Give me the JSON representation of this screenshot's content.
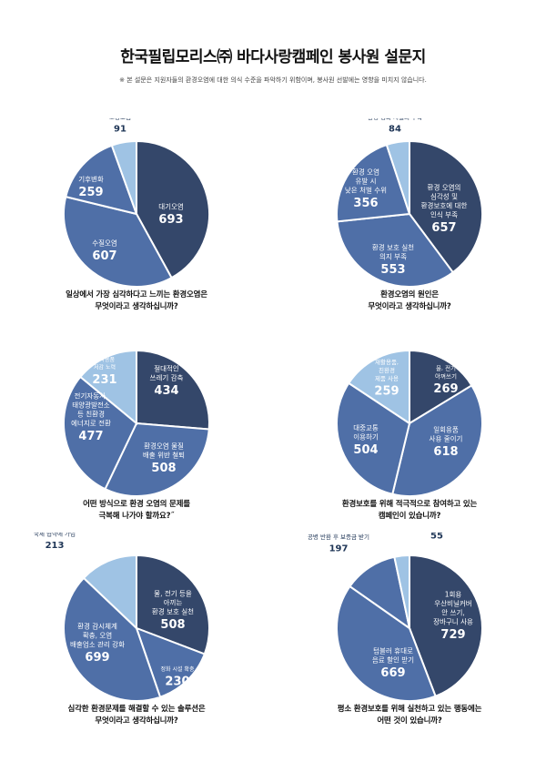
{
  "header": {
    "title": "한국필립모리스㈜ 바다사랑캠페인 봉사원 설문지",
    "note": "※ 본 설문은 지원자들의 환경오염에 대한 의식 수준을 파악하기 위함이며, 봉사원 선발에는 영향을 미치지 않습니다."
  },
  "colors": {
    "dark": "#34476a",
    "mid": "#4f6fa7",
    "light": "#9fc3e4",
    "label_dark": "#1e3556"
  },
  "chart_data": [
    {
      "type": "pie",
      "question": [
        "일상에서 가장 심각하다고 느끼는 환경오염은",
        "무엇이라고 생각하십니까?"
      ],
      "slices": [
        {
          "label": [
            "대기오염"
          ],
          "value": 693
        },
        {
          "label": [
            "수질오염"
          ],
          "value": 607
        },
        {
          "label": [
            "기후변화"
          ],
          "value": 259
        },
        {
          "label": [
            "토양오염"
          ],
          "value": 91
        }
      ]
    },
    {
      "type": "pie",
      "question": [
        "환경오염의 원인은",
        "무엇이라고 생각하십니까?"
      ],
      "slices": [
        {
          "label": [
            "환경 오염의",
            "심각성 및",
            "환경보호에 대한",
            "인식 부족"
          ],
          "value": 657
        },
        {
          "label": [
            "환경 보호 실천",
            "의지 부족"
          ],
          "value": 553
        },
        {
          "label": [
            "환경 오염",
            "유발 시",
            "낮은 처벌 수위"
          ],
          "value": 356
        },
        {
          "label": [
            "환경 정화 시설의 부족"
          ],
          "value": 84
        }
      ]
    },
    {
      "type": "pie",
      "question": [
        "어떤 방식으로 환경 오염의 문제를",
        "극복해 나가야 할까요?˝"
      ],
      "slices": [
        {
          "label": [
            "절대적인",
            "쓰레기 감축"
          ],
          "value": 434
        },
        {
          "label": [
            "환경오염 물질",
            "배출 위반 철퇴"
          ],
          "value": 508
        },
        {
          "label": [
            "전기자동차,",
            "태양광발전소",
            "등 친환경",
            "에너지로 전환"
          ],
          "value": 477
        },
        {
          "label": [
            "농약 및",
            "화학용품",
            "저감 노력"
          ],
          "value": 231
        }
      ]
    },
    {
      "type": "pie",
      "question": [
        "환경보호를 위해 적극적으로 참여하고 있는",
        "캠페인이 있습니까?"
      ],
      "slices": [
        {
          "label": [
            "물, 전기",
            "아껴쓰기"
          ],
          "value": 269
        },
        {
          "label": [
            "일회용품",
            "사용 줄이기"
          ],
          "value": 618
        },
        {
          "label": [
            "대중교통",
            "이용하기"
          ],
          "value": 504
        },
        {
          "label": [
            "재활용품,",
            "친환경",
            "제품 사용"
          ],
          "value": 259
        }
      ]
    },
    {
      "type": "pie",
      "question": [
        "심각한 환경문제를 해결할 수 있는 솔루션은",
        "무엇이라고 생각하십니까?"
      ],
      "slices": [
        {
          "label": [
            "물, 전기 등을",
            "아끼는",
            "환경 보호 실천"
          ],
          "value": 508
        },
        {
          "label": [
            "정화 시설 확충"
          ],
          "value": 230
        },
        {
          "label": [
            "환경 감시체계",
            "확충, 오염",
            "배출업소 관리 강화"
          ],
          "value": 699
        },
        {
          "label": [
            "다른 나라와 협조 및 환경 관련",
            "국제 협약에 가입"
          ],
          "value": 213
        }
      ]
    },
    {
      "type": "pie",
      "question": [
        "평소 환경보호를 위해 실천하고 있는 행동에는",
        "어떤 것이 있습니까?"
      ],
      "slices": [
        {
          "label": [
            "1회용",
            "우산비닐커버",
            "안 쓰기,",
            "장바구니 사용"
          ],
          "value": 729
        },
        {
          "label": [
            "텀블러 휴대로",
            "음료 할인 받기"
          ],
          "value": 669
        },
        {
          "label": [
            "공병 반환 후 보증금 받기"
          ],
          "value": 197
        },
        {
          "label": [
            "차량2부제 참여"
          ],
          "value": 55
        }
      ]
    }
  ]
}
